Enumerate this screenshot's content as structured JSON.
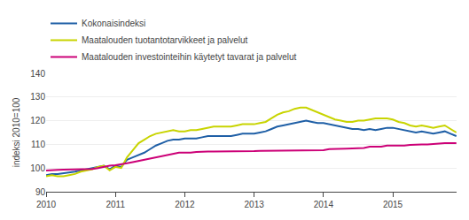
{
  "chart_data": {
    "type": "line",
    "ylabel": "indeksi 2010=100",
    "x": [
      2010.0,
      2010.0833333333333,
      2010.1666666666667,
      2010.25,
      2010.3333333333333,
      2010.4166666666667,
      2010.5,
      2010.5833333333333,
      2010.6666666666667,
      2010.75,
      2010.8333333333333,
      2010.9166666666667,
      2011.0,
      2011.0833333333333,
      2011.1666666666667,
      2011.25,
      2011.3333333333333,
      2011.4166666666667,
      2011.5,
      2011.5833333333333,
      2011.6666666666667,
      2011.75,
      2011.8333333333333,
      2011.9166666666667,
      2012.0,
      2012.0833333333333,
      2012.1666666666667,
      2012.25,
      2012.3333333333333,
      2012.4166666666667,
      2012.5,
      2012.5833333333333,
      2012.6666666666667,
      2012.75,
      2012.8333333333333,
      2012.9166666666667,
      2013.0,
      2013.0833333333333,
      2013.1666666666667,
      2013.25,
      2013.3333333333333,
      2013.4166666666667,
      2013.5,
      2013.5833333333333,
      2013.6666666666667,
      2013.75,
      2013.8333333333333,
      2013.9166666666667,
      2014.0,
      2014.0833333333333,
      2014.1666666666667,
      2014.25,
      2014.3333333333333,
      2014.4166666666667,
      2014.5,
      2014.5833333333333,
      2014.6666666666667,
      2014.75,
      2014.8333333333333,
      2014.9166666666667,
      2015.0,
      2015.0833333333333,
      2015.1666666666667,
      2015.25,
      2015.3333333333333,
      2015.4166666666667,
      2015.5,
      2015.5833333333333,
      2015.6666666666667,
      2015.75,
      2015.8333333333333,
      2015.9166666666667
    ],
    "xlim": [
      2010.0,
      2015.92
    ],
    "xticks": [
      2010,
      2011,
      2012,
      2013,
      2014,
      2015
    ],
    "ylim": [
      90,
      140
    ],
    "yticks": [
      90,
      100,
      110,
      120,
      130,
      140
    ],
    "grid": "y",
    "legend": "upper left",
    "series": [
      {
        "name": "Kokonaisindeksi",
        "color": "#1f5fa6",
        "values": [
          97.0,
          97.5,
          97.5,
          97.8,
          98.0,
          98.5,
          99.0,
          99.5,
          99.8,
          100.5,
          101.0,
          99.5,
          101.0,
          100.5,
          103.5,
          104.5,
          105.5,
          106.5,
          108.0,
          109.5,
          110.5,
          111.5,
          112.0,
          112.0,
          112.5,
          112.5,
          112.5,
          113.0,
          113.5,
          113.5,
          113.5,
          113.5,
          113.5,
          114.0,
          114.5,
          114.5,
          114.5,
          115.0,
          115.5,
          116.5,
          117.5,
          118.0,
          118.5,
          119.0,
          119.5,
          120.0,
          119.5,
          119.0,
          119.0,
          118.5,
          118.0,
          117.5,
          117.0,
          116.5,
          116.5,
          116.0,
          116.5,
          116.0,
          116.5,
          117.0,
          117.0,
          116.5,
          116.0,
          115.5,
          115.0,
          115.5,
          115.0,
          114.5,
          115.0,
          115.5,
          114.5,
          113.5
        ]
      },
      {
        "name": "Maatalouden tuotantotarvikkeet ja palvelut",
        "color": "#c8d400",
        "values": [
          96.5,
          97.0,
          96.5,
          96.5,
          97.0,
          97.5,
          98.5,
          99.0,
          99.5,
          100.5,
          101.0,
          99.0,
          100.5,
          100.0,
          104.5,
          107.5,
          110.5,
          112.0,
          113.5,
          114.5,
          115.0,
          115.5,
          116.0,
          115.5,
          115.5,
          116.0,
          116.0,
          116.5,
          117.0,
          117.5,
          117.5,
          117.5,
          117.5,
          118.0,
          118.5,
          118.5,
          118.5,
          119.0,
          119.5,
          121.0,
          122.5,
          123.5,
          124.0,
          125.0,
          125.5,
          125.5,
          124.5,
          123.5,
          122.5,
          121.5,
          120.5,
          120.0,
          119.5,
          119.5,
          120.0,
          120.0,
          120.5,
          121.0,
          121.0,
          121.0,
          120.5,
          119.5,
          119.0,
          118.0,
          117.5,
          118.0,
          117.5,
          117.0,
          117.5,
          118.0,
          116.5,
          115.0
        ]
      },
      {
        "name": "Maatalouden investointeihin käytetyt tavarat ja palvelut",
        "color": "#cc0077",
        "values": [
          99.0,
          99.0,
          99.2,
          99.3,
          99.4,
          99.5,
          99.5,
          99.5,
          99.6,
          100.0,
          100.5,
          101.0,
          101.2,
          101.5,
          102.0,
          102.5,
          103.0,
          103.5,
          104.0,
          104.5,
          105.0,
          105.5,
          106.0,
          106.5,
          106.5,
          106.5,
          106.8,
          107.0,
          107.0,
          107.0,
          107.0,
          107.0,
          107.0,
          107.0,
          107.2,
          107.2,
          107.2,
          107.3,
          107.3,
          107.3,
          107.4,
          107.4,
          107.5,
          107.5,
          107.5,
          107.5,
          107.5,
          107.5,
          107.5,
          108.0,
          108.0,
          108.0,
          108.2,
          108.3,
          108.5,
          108.5,
          109.0,
          109.0,
          109.0,
          109.5,
          109.5,
          109.5,
          109.5,
          109.8,
          110.0,
          110.0,
          110.0,
          110.2,
          110.5,
          110.5,
          110.5,
          110.5
        ]
      }
    ]
  }
}
